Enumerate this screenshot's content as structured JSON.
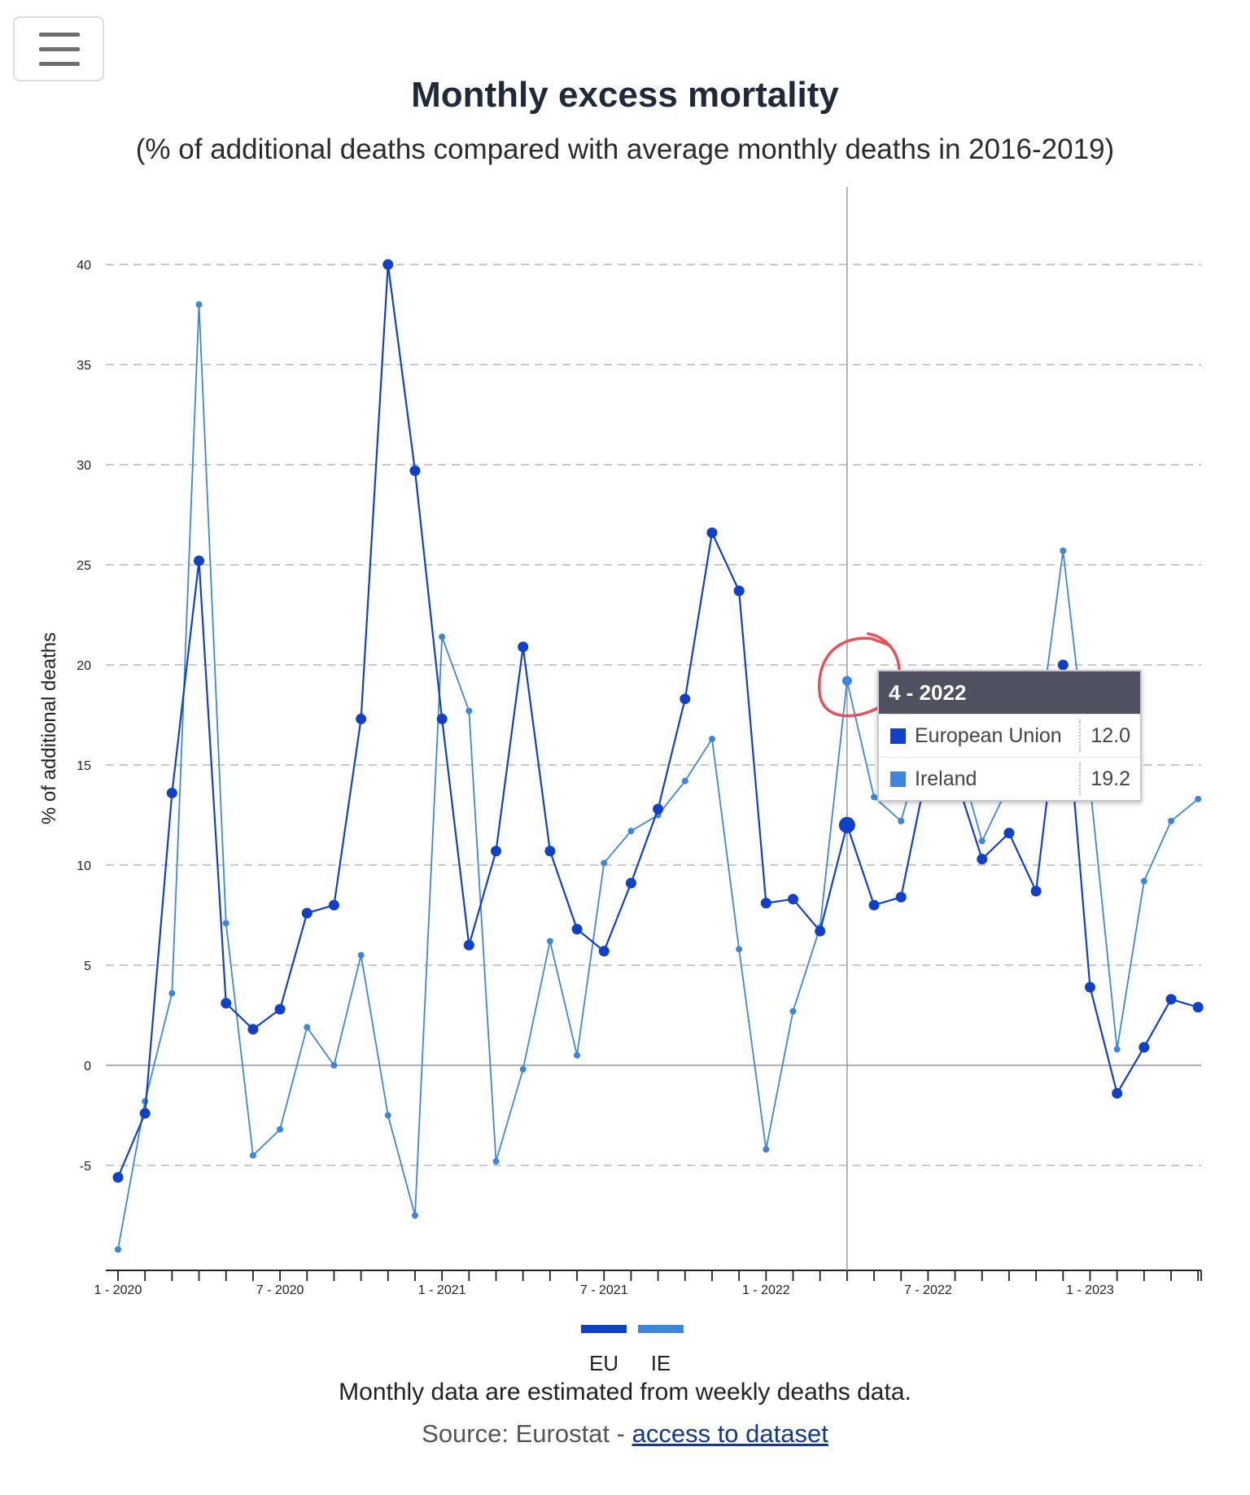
{
  "title": "Monthly excess mortality",
  "subtitle": "(% of additional deaths compared with average monthly deaths in 2016-2019)",
  "menu": {
    "icon": "hamburger-menu-icon"
  },
  "chart_data": {
    "type": "line",
    "ylabel": "% of additional deaths",
    "ylim": [
      -9.5,
      44
    ],
    "yticks": [
      -5,
      0,
      5,
      10,
      15,
      20,
      25,
      30,
      35,
      40
    ],
    "x_tick_labels": [
      "1 - 2020",
      "7 - 2020",
      "1 - 2021",
      "7 - 2021",
      "1 - 2022",
      "7 - 2022",
      "1 - 2023"
    ],
    "x_tick_months": [
      0,
      6,
      12,
      18,
      24,
      30,
      36
    ],
    "months_count": 41,
    "grid": "horizontal dashed",
    "crosshair_month": 27,
    "series": [
      {
        "name": "EU",
        "color": "#1040c8",
        "values": [
          -5.6,
          -2.4,
          13.6,
          25.2,
          3.1,
          1.8,
          2.8,
          7.6,
          8.0,
          17.3,
          40.0,
          29.7,
          17.3,
          6.0,
          10.7,
          20.9,
          10.7,
          6.8,
          5.7,
          9.1,
          12.8,
          18.3,
          26.6,
          23.7,
          8.1,
          8.3,
          6.7,
          12.0,
          8.0,
          8.4,
          15.0,
          14.5,
          10.3,
          11.6,
          8.7,
          20.0,
          3.9,
          -1.4,
          0.9,
          3.3,
          2.9
        ]
      },
      {
        "name": "IE",
        "color": "#3d86dc",
        "values": [
          -9.2,
          -1.8,
          3.6,
          38.0,
          7.1,
          -4.5,
          -3.2,
          1.9,
          0.0,
          5.5,
          -2.5,
          -7.5,
          21.4,
          17.7,
          -4.8,
          -0.2,
          6.2,
          0.5,
          10.1,
          11.7,
          12.5,
          14.2,
          16.3,
          5.8,
          -4.2,
          2.7,
          6.9,
          19.2,
          13.4,
          12.2,
          17.0,
          16.0,
          11.2,
          14.0,
          15.5,
          25.7,
          14.0,
          0.8,
          9.2,
          12.2,
          13.3
        ]
      }
    ]
  },
  "legend": [
    {
      "label": "EU",
      "color": "#1040c8"
    },
    {
      "label": "IE",
      "color": "#3d86dc"
    }
  ],
  "tooltip": {
    "header": "4 - 2022",
    "rows": [
      {
        "name": "European Union",
        "value": "12.0",
        "color": "#1040c8"
      },
      {
        "name": "Ireland",
        "value": "19.2",
        "color": "#3d86dc"
      }
    ]
  },
  "annotation": {
    "color": "#e8505a"
  },
  "footer": {
    "note": "Monthly data are estimated from weekly deaths data.",
    "source_prefix": "Source: Eurostat - ",
    "source_link": "access to dataset"
  }
}
